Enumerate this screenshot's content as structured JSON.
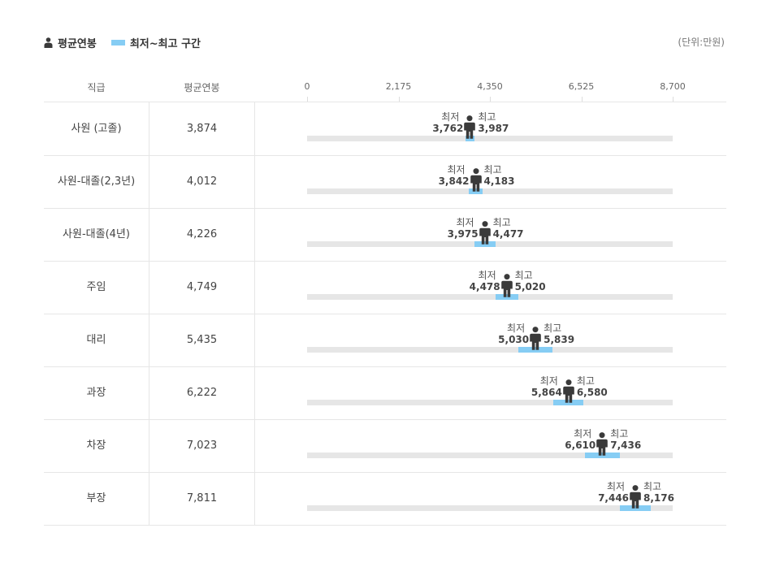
{
  "legend": {
    "avg_label": "평균연봉",
    "range_label": "최저~최고 구간",
    "unit": "(단위:만원)"
  },
  "table": {
    "col_position": "직급",
    "col_avg": "평균연봉",
    "min_word": "최저",
    "max_word": "최고"
  },
  "colors": {
    "range_bar": "#86cdf4",
    "track": "#e6e6e6",
    "person_icon": "#3a3a3a"
  },
  "chart_data": {
    "type": "range-dot",
    "xlim": [
      0,
      8700
    ],
    "ticks": [
      "0",
      "2,175",
      "4,350",
      "6,525",
      "8,700"
    ],
    "tick_values": [
      0,
      2175,
      4350,
      6525,
      8700
    ],
    "series": [
      {
        "name": "평균연봉"
      },
      {
        "name": "최저~최고 구간"
      }
    ],
    "rows": [
      {
        "position": "사원 (고졸)",
        "avg": 3874,
        "avg_label": "3,874",
        "min": 3762,
        "min_label": "3,762",
        "max": 3987,
        "max_label": "3,987"
      },
      {
        "position": "사원-대졸(2,3년)",
        "avg": 4012,
        "avg_label": "4,012",
        "min": 3842,
        "min_label": "3,842",
        "max": 4183,
        "max_label": "4,183"
      },
      {
        "position": "사원-대졸(4년)",
        "avg": 4226,
        "avg_label": "4,226",
        "min": 3975,
        "min_label": "3,975",
        "max": 4477,
        "max_label": "4,477"
      },
      {
        "position": "주임",
        "avg": 4749,
        "avg_label": "4,749",
        "min": 4478,
        "min_label": "4,478",
        "max": 5020,
        "max_label": "5,020"
      },
      {
        "position": "대리",
        "avg": 5435,
        "avg_label": "5,435",
        "min": 5030,
        "min_label": "5,030",
        "max": 5839,
        "max_label": "5,839"
      },
      {
        "position": "과장",
        "avg": 6222,
        "avg_label": "6,222",
        "min": 5864,
        "min_label": "5,864",
        "max": 6580,
        "max_label": "6,580"
      },
      {
        "position": "차장",
        "avg": 7023,
        "avg_label": "7,023",
        "min": 6610,
        "min_label": "6,610",
        "max": 7436,
        "max_label": "7,436"
      },
      {
        "position": "부장",
        "avg": 7811,
        "avg_label": "7,811",
        "min": 7446,
        "min_label": "7,446",
        "max": 8176,
        "max_label": "8,176"
      }
    ]
  }
}
